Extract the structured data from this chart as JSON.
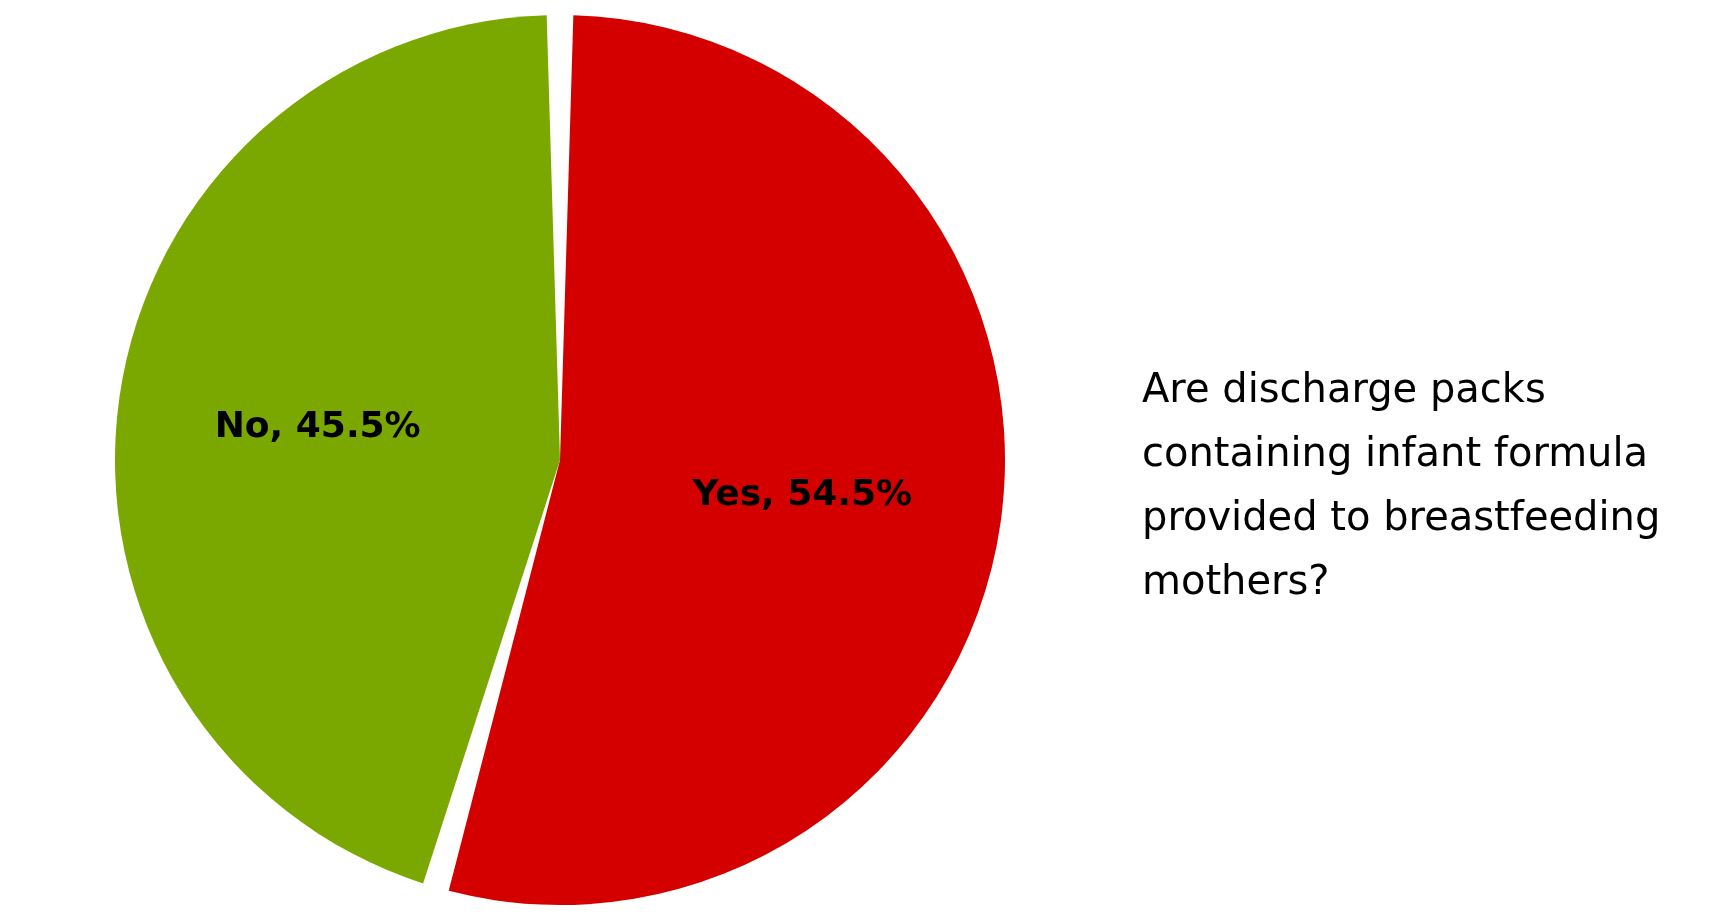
{
  "chart_data": {
    "type": "pie",
    "title": "Are discharge packs containing infant formula provided to breastfeeding mothers?",
    "categories": [
      "Yes",
      "No"
    ],
    "values": [
      54.5,
      45.5
    ],
    "colors": [
      "#d40000",
      "#7aa800"
    ],
    "value_labels": [
      "54.5%",
      "45.5%"
    ]
  }
}
